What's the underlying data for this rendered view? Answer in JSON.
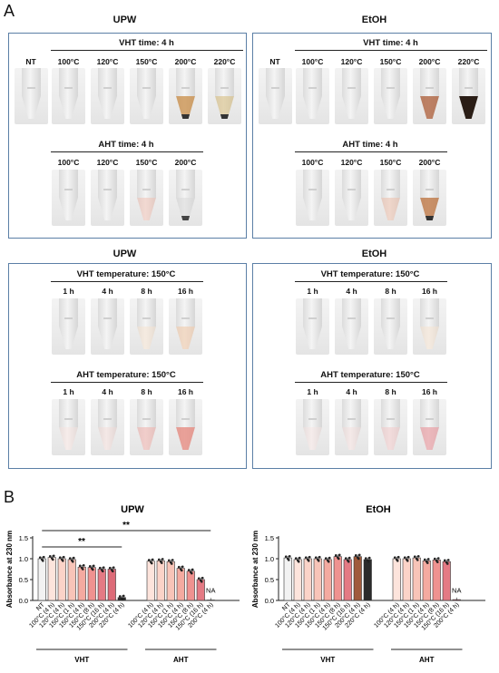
{
  "panel_a": {
    "letter": "A",
    "upw_title": "UPW",
    "etoh_title": "EtOH",
    "vht_time": "VHT time: 4 h",
    "aht_time": "AHT time: 4 h",
    "vht_temp": "VHT temperature: 150°C",
    "aht_temp": "AHT temperature: 150°C",
    "nt": "NT",
    "temps_vht": [
      "100°C",
      "120°C",
      "150°C",
      "200°C",
      "220°C"
    ],
    "temps_aht": [
      "100°C",
      "120°C",
      "150°C",
      "200°C"
    ],
    "times": [
      "1 h",
      "4 h",
      "8 h",
      "16 h"
    ]
  },
  "panel_b": {
    "letter": "B",
    "upw_title": "UPW",
    "etoh_title": "EtOH",
    "ylabel": "Absorbance at 230 nm",
    "sig1": "**",
    "sig2": "**",
    "na": "NA",
    "group_vht": "VHT",
    "group_aht": "AHT",
    "yticks": [
      "0.0",
      "0.5",
      "1.0",
      "1.5"
    ]
  },
  "chart_data": [
    {
      "type": "bar",
      "title": "UPW",
      "ylabel": "Absorbance at 230 nm",
      "ylim": [
        0,
        1.5
      ],
      "categories": [
        "NT",
        "100°C (4 h)",
        "120°C (4 h)",
        "150°C (1 h)",
        "150°C (4 h)",
        "150°C (8 h)",
        "150°C (16 h)",
        "200°C (4 h)",
        "220°C (4 h)",
        "100°C (4 h)",
        "120°C (4 h)",
        "150°C (1 h)",
        "150°C (4 h)",
        "150°C (8 h)",
        "150°C (16 h)",
        "200°C (4 h)"
      ],
      "values": [
        1.0,
        1.03,
        1.0,
        0.98,
        0.8,
        0.79,
        0.75,
        0.75,
        0.07,
        0.94,
        0.95,
        0.93,
        0.77,
        0.7,
        0.5,
        0.01
      ],
      "colors": [
        "#f2f2f2",
        "#fde4dc",
        "#fbd3c8",
        "#f8c4b8",
        "#f4aaa0",
        "#ef9290",
        "#e47a84",
        "#dd6b78",
        "#2b2b2b",
        "#fde4dc",
        "#fbd3c8",
        "#f8c4b8",
        "#f4aaa0",
        "#ef9290",
        "#e47a84",
        "#d45670"
      ],
      "groups": [
        "VHT",
        "AHT"
      ],
      "annotations": [
        "**",
        "**",
        "NA"
      ]
    },
    {
      "type": "bar",
      "title": "EtOH",
      "ylabel": "Absorbance at 230 nm",
      "ylim": [
        0,
        1.5
      ],
      "categories": [
        "NT",
        "100°C (4 h)",
        "120°C (4 h)",
        "150°C (1 h)",
        "150°C (4 h)",
        "150°C (8 h)",
        "150°C (16 h)",
        "200°C (4 h)",
        "220°C (4 h)",
        "100°C (4 h)",
        "120°C (4 h)",
        "150°C (1 h)",
        "150°C (4 h)",
        "150°C (8 h)",
        "150°C (16 h)",
        "200°C (4 h)"
      ],
      "values": [
        1.02,
        0.98,
        1.0,
        1.0,
        0.98,
        1.05,
        0.98,
        1.05,
        0.98,
        1.0,
        1.0,
        1.02,
        0.95,
        0.97,
        0.93,
        0.02
      ],
      "colors": [
        "#f2f2f2",
        "#fde4dc",
        "#fbd3c8",
        "#f8c4b8",
        "#f4aaa0",
        "#ef9290",
        "#e47a84",
        "#a05a3c",
        "#2b2b2b",
        "#fde4dc",
        "#fbd3c8",
        "#f8c4b8",
        "#f4aaa0",
        "#ef9290",
        "#e47a84",
        "#d45670"
      ],
      "groups": [
        "VHT",
        "AHT"
      ],
      "annotations": [
        "NA"
      ]
    }
  ]
}
